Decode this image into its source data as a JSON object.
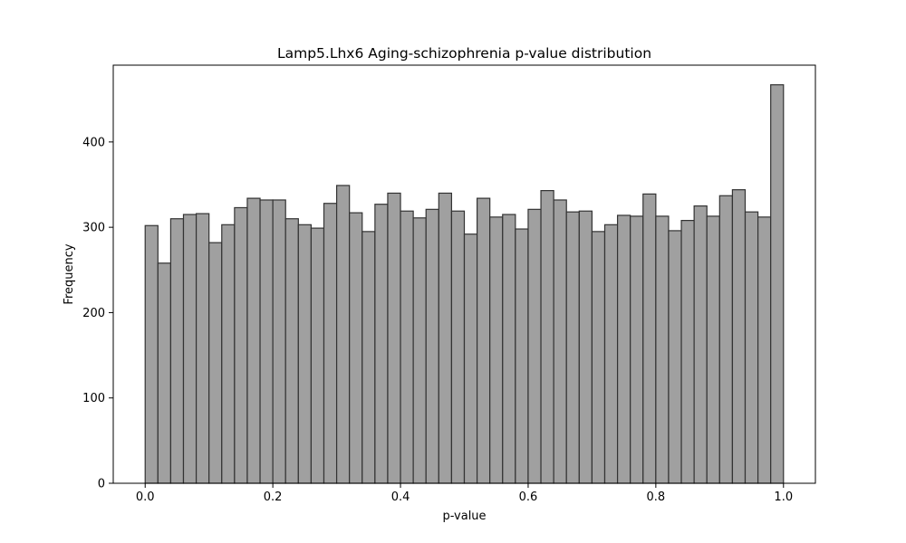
{
  "chart_data": {
    "type": "bar",
    "title": "Lamp5.Lhx6 Aging-schizophrenia p-value distribution",
    "xlabel": "p-value",
    "ylabel": "Frequency",
    "xlim": [
      -0.05,
      1.05
    ],
    "ylim": [
      0,
      490
    ],
    "x_ticks": [
      0.0,
      0.2,
      0.4,
      0.6,
      0.8,
      1.0
    ],
    "x_tick_labels": [
      "0.0",
      "0.2",
      "0.4",
      "0.6",
      "0.8",
      "1.0"
    ],
    "y_ticks": [
      0,
      100,
      200,
      300,
      400
    ],
    "y_tick_labels": [
      "0",
      "100",
      "200",
      "300",
      "400"
    ],
    "bin_width": 0.02,
    "bin_edges_start": 0.0,
    "values": [
      302,
      258,
      310,
      315,
      316,
      282,
      303,
      323,
      334,
      332,
      332,
      310,
      303,
      299,
      328,
      349,
      317,
      295,
      327,
      340,
      319,
      311,
      321,
      340,
      319,
      292,
      334,
      312,
      315,
      298,
      321,
      343,
      332,
      318,
      319,
      295,
      303,
      314,
      313,
      339,
      313,
      296,
      308,
      325,
      313,
      337,
      344,
      318,
      312,
      467
    ],
    "grid": false,
    "bar_color": "#a0a0a0",
    "edge_color": "#333333"
  }
}
